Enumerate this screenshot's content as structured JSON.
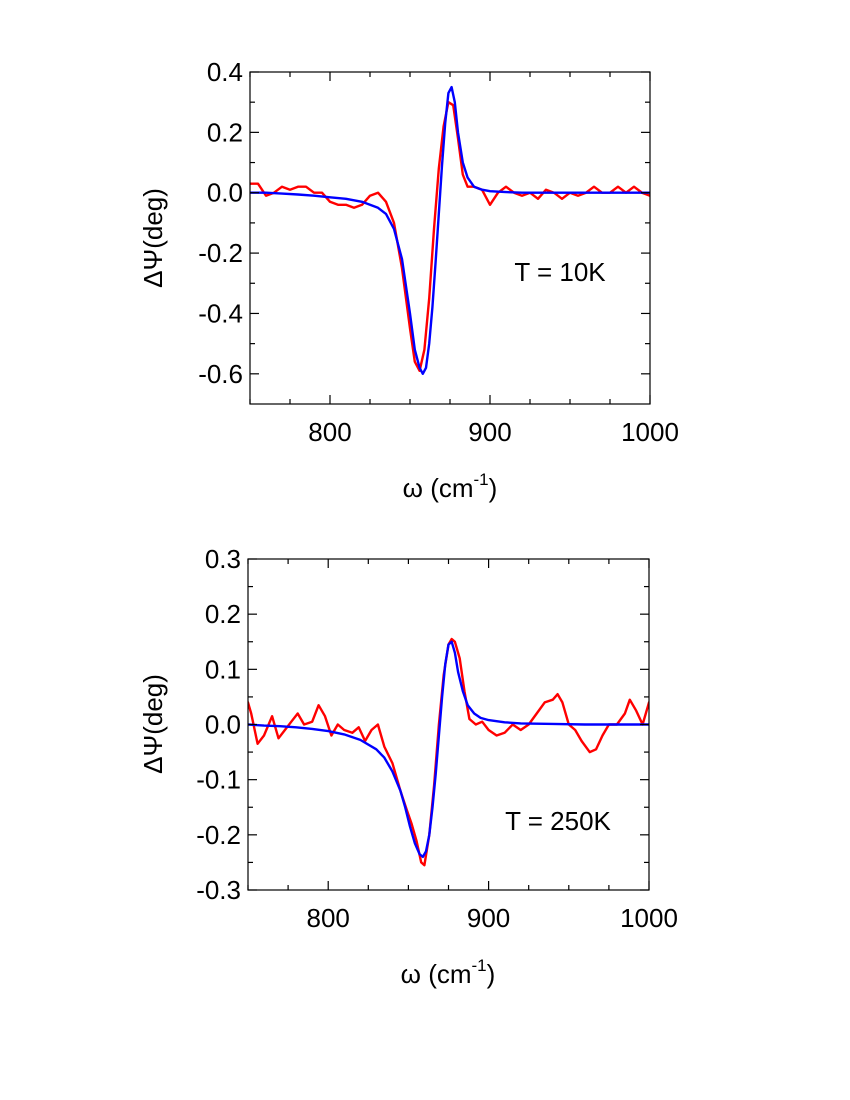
{
  "chart_data": [
    {
      "type": "line",
      "annotation": "T = 10K",
      "ylabel": "ΔΨ(deg)",
      "xlabel": "ω (cm-1)",
      "xlim": [
        750,
        1000
      ],
      "ylim": [
        -0.7,
        0.4
      ],
      "xticks": [
        800,
        900,
        1000
      ],
      "xtick_labels": [
        "800",
        "900",
        "1000"
      ],
      "yticks": [
        -0.6,
        -0.4,
        -0.2,
        0.0,
        0.2,
        0.4
      ],
      "ytick_labels": [
        "-0.6",
        "-0.4",
        "-0.2",
        "0.0",
        "0.2",
        "0.4"
      ],
      "grid": false,
      "series": [
        {
          "color": "#ff0000",
          "x": [
            750,
            755,
            760,
            765,
            770,
            775,
            780,
            785,
            790,
            795,
            800,
            805,
            810,
            815,
            820,
            825,
            830,
            835,
            840,
            845,
            850,
            853,
            856,
            859,
            862,
            865,
            868,
            871,
            874,
            877,
            880,
            883,
            886,
            890,
            895,
            900,
            905,
            910,
            915,
            920,
            925,
            930,
            935,
            940,
            945,
            950,
            955,
            960,
            965,
            970,
            975,
            980,
            985,
            990,
            995,
            1000
          ],
          "y": [
            0.03,
            0.03,
            -0.01,
            0.0,
            0.02,
            0.01,
            0.02,
            0.02,
            0.0,
            0.0,
            -0.03,
            -0.04,
            -0.04,
            -0.05,
            -0.04,
            -0.01,
            0.0,
            -0.03,
            -0.1,
            -0.25,
            -0.45,
            -0.56,
            -0.59,
            -0.52,
            -0.35,
            -0.12,
            0.08,
            0.22,
            0.3,
            0.29,
            0.18,
            0.06,
            0.02,
            0.02,
            0.01,
            -0.04,
            0.0,
            0.02,
            0.0,
            -0.01,
            0.0,
            -0.02,
            0.01,
            0.0,
            -0.02,
            0.0,
            -0.01,
            0.0,
            0.02,
            0.0,
            0.0,
            0.02,
            0.0,
            0.02,
            0.0,
            -0.01
          ]
        },
        {
          "color": "#0000ff",
          "x": [
            750,
            760,
            770,
            780,
            790,
            800,
            810,
            820,
            830,
            835,
            840,
            845,
            850,
            853,
            856,
            858,
            860,
            862,
            864,
            866,
            868,
            870,
            872,
            874,
            876,
            878,
            880,
            883,
            886,
            890,
            895,
            900,
            910,
            920,
            940,
            960,
            980,
            1000
          ],
          "y": [
            0.0,
            0.0,
            -0.003,
            -0.006,
            -0.01,
            -0.015,
            -0.02,
            -0.03,
            -0.05,
            -0.07,
            -0.12,
            -0.22,
            -0.4,
            -0.52,
            -0.58,
            -0.6,
            -0.58,
            -0.5,
            -0.38,
            -0.23,
            -0.07,
            0.09,
            0.23,
            0.33,
            0.35,
            0.3,
            0.2,
            0.1,
            0.05,
            0.02,
            0.01,
            0.005,
            0.002,
            0.0,
            0.0,
            0.0,
            0.0,
            0.0
          ]
        }
      ]
    },
    {
      "type": "line",
      "annotation": "T = 250K",
      "ylabel": "ΔΨ(deg)",
      "xlabel": "ω (cm-1)",
      "xlim": [
        750,
        1000
      ],
      "ylim": [
        -0.3,
        0.3
      ],
      "xticks": [
        800,
        900,
        1000
      ],
      "xtick_labels": [
        "800",
        "900",
        "1000"
      ],
      "yticks": [
        -0.3,
        -0.2,
        -0.1,
        0.0,
        0.1,
        0.2,
        0.3
      ],
      "ytick_labels": [
        "-0.3",
        "-0.2",
        "-0.1",
        "0.0",
        "0.1",
        "0.2",
        "0.3"
      ],
      "grid": false,
      "series": [
        {
          "color": "#ff0000",
          "x": [
            750,
            752,
            756,
            760,
            765,
            769,
            773,
            777,
            781,
            785,
            790,
            794,
            798,
            802,
            806,
            810,
            815,
            819,
            823,
            827,
            831,
            835,
            840,
            845,
            849,
            852,
            855,
            858,
            860,
            863,
            866,
            869,
            872,
            875,
            877,
            879,
            882,
            885,
            888,
            892,
            896,
            900,
            905,
            910,
            915,
            920,
            925,
            930,
            935,
            940,
            943,
            946,
            950,
            954,
            958,
            963,
            967,
            971,
            975,
            980,
            985,
            988,
            992,
            996,
            1000
          ],
          "y": [
            0.04,
            0.02,
            -0.035,
            -0.02,
            0.015,
            -0.025,
            -0.01,
            0.005,
            0.02,
            0.0,
            0.005,
            0.035,
            0.015,
            -0.02,
            0.0,
            -0.01,
            -0.015,
            -0.005,
            -0.03,
            -0.01,
            0.0,
            -0.04,
            -0.07,
            -0.12,
            -0.155,
            -0.18,
            -0.21,
            -0.25,
            -0.255,
            -0.2,
            -0.11,
            0.0,
            0.09,
            0.145,
            0.155,
            0.15,
            0.12,
            0.06,
            0.01,
            0.0,
            0.005,
            -0.01,
            -0.02,
            -0.015,
            0.0,
            -0.01,
            0.0,
            0.02,
            0.04,
            0.045,
            0.055,
            0.04,
            0.0,
            -0.01,
            -0.03,
            -0.05,
            -0.045,
            -0.02,
            0.0,
            0.0,
            0.02,
            0.045,
            0.025,
            0.0,
            0.04
          ]
        },
        {
          "color": "#0000ff",
          "x": [
            750,
            760,
            770,
            780,
            790,
            800,
            810,
            820,
            830,
            835,
            840,
            845,
            848,
            851,
            854,
            857,
            859,
            861,
            863,
            865,
            867,
            869,
            871,
            873,
            875,
            877,
            879,
            881,
            884,
            887,
            891,
            895,
            900,
            910,
            920,
            940,
            960,
            980,
            1000
          ],
          "y": [
            0.0,
            -0.002,
            -0.003,
            -0.005,
            -0.008,
            -0.012,
            -0.018,
            -0.028,
            -0.045,
            -0.06,
            -0.085,
            -0.12,
            -0.15,
            -0.185,
            -0.215,
            -0.235,
            -0.24,
            -0.23,
            -0.2,
            -0.15,
            -0.09,
            -0.02,
            0.05,
            0.11,
            0.145,
            0.15,
            0.13,
            0.095,
            0.06,
            0.035,
            0.02,
            0.012,
            0.008,
            0.004,
            0.002,
            0.001,
            0.0,
            0.0,
            0.0
          ]
        }
      ]
    }
  ]
}
